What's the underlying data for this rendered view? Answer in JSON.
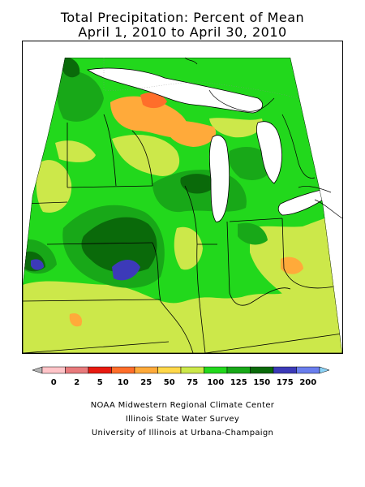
{
  "title": {
    "line1": "Total Precipitation: Percent of Mean",
    "line2": "April 1, 2010 to April 30, 2010"
  },
  "legend": {
    "ticks": [
      "0",
      "2",
      "5",
      "10",
      "25",
      "50",
      "75",
      "100",
      "125",
      "150",
      "175",
      "200"
    ],
    "colors": [
      "#b4b4b4",
      "#ffc4c8",
      "#e87a7c",
      "#e81a10",
      "#ff6e2a",
      "#ffaa3a",
      "#ffd84a",
      "#cce84a",
      "#22d81c",
      "#18a818",
      "#0a6a0a",
      "#3c3ab8",
      "#6a7eee",
      "#8cd4f8"
    ]
  },
  "map": {
    "colors": {
      "bright_green": "#22d81c",
      "mid_green": "#18a818",
      "dark_green": "#0a6a0a",
      "yellow_green": "#cce84a",
      "orange": "#ffaa3a",
      "red_orange": "#ff6e2a",
      "blue": "#3c3ab8",
      "water": "#ffffff"
    }
  },
  "credits": {
    "line1": "NOAA Midwestern Regional Climate Center",
    "line2": "Illinois State Water Survey",
    "line3": "University of Illinois at Urbana-Champaign"
  }
}
